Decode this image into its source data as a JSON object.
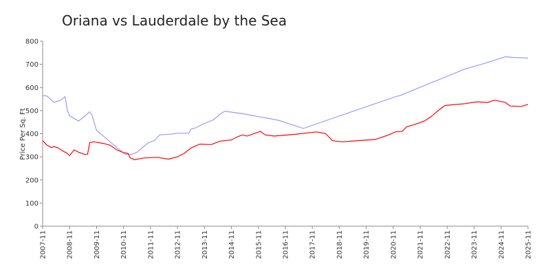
{
  "chart_data": {
    "type": "line",
    "title": "Oriana vs Lauderdale by the Sea",
    "y_label": "Price Per Sq. Ft",
    "xlim": [
      "2007-11",
      "2025-11"
    ],
    "xticks": [
      "2007-11",
      "2008-11",
      "2009-11",
      "2010-11",
      "2011-11",
      "2012-11",
      "2013-11",
      "2014-11",
      "2015-11",
      "2016-11",
      "2017-11",
      "2018-11",
      "2019-11",
      "2020-11",
      "2021-11",
      "2022-11",
      "2023-11",
      "2024-11",
      "2025-11"
    ],
    "ylim": [
      0,
      800
    ],
    "yticks": [
      0,
      100,
      200,
      300,
      400,
      500,
      600,
      700,
      800
    ],
    "series": [
      {
        "color": "#9999ff",
        "x": [
          "2007-11",
          "2008-01",
          "2008-04",
          "2008-07",
          "2008-09",
          "2008-10",
          "2008-11",
          "2009-03",
          "2009-05",
          "2009-08",
          "2009-09",
          "2009-11",
          "2010-02",
          "2010-05",
          "2010-08",
          "2010-12",
          "2011-03",
          "2011-05",
          "2011-08",
          "2011-10",
          "2012-01",
          "2012-03",
          "2012-08",
          "2012-11",
          "2013-04",
          "2013-05",
          "2013-07",
          "2013-10",
          "2014-03",
          "2014-06",
          "2014-08",
          "2014-10",
          "2015-05",
          "2016-08",
          "2017-07",
          "2020-12",
          "2021-02",
          "2021-07",
          "2023-07",
          "2024-04",
          "2025-01",
          "2025-04",
          "2025-11"
        ],
        "values": [
          565,
          563,
          535,
          545,
          560,
          500,
          478,
          455,
          470,
          495,
          480,
          415,
          390,
          365,
          340,
          310,
          312,
          320,
          345,
          360,
          372,
          395,
          398,
          402,
          402,
          420,
          425,
          440,
          460,
          485,
          497,
          495,
          485,
          458,
          423,
          560,
          565,
          585,
          680,
          705,
          733,
          730,
          727
        ]
      },
      {
        "color": "#ff0000",
        "x": [
          "2007-11",
          "2008-01",
          "2008-03",
          "2008-04",
          "2008-06",
          "2008-08",
          "2008-10",
          "2008-11",
          "2009-01",
          "2009-03",
          "2009-06",
          "2009-07",
          "2009-08",
          "2009-10",
          "2010-02",
          "2010-05",
          "2010-08",
          "2010-11",
          "2011-01",
          "2011-02",
          "2011-04",
          "2011-08",
          "2012-02",
          "2012-07",
          "2012-11",
          "2013-02",
          "2013-05",
          "2013-09",
          "2014-02",
          "2014-06",
          "2014-11",
          "2015-02",
          "2015-04",
          "2015-06",
          "2015-12",
          "2016-02",
          "2016-06",
          "2017-03",
          "2018-01",
          "2018-05",
          "2018-08",
          "2018-12",
          "2020-03",
          "2020-09",
          "2020-12",
          "2021-03",
          "2021-05",
          "2021-08",
          "2022-01",
          "2022-04",
          "2022-07",
          "2022-10",
          "2023-01",
          "2023-07",
          "2023-10",
          "2024-01",
          "2024-05",
          "2024-08",
          "2025-01",
          "2025-03",
          "2025-08",
          "2025-11"
        ],
        "values": [
          370,
          350,
          340,
          345,
          338,
          325,
          315,
          305,
          330,
          320,
          310,
          312,
          362,
          365,
          358,
          350,
          330,
          318,
          315,
          295,
          288,
          295,
          298,
          290,
          300,
          315,
          338,
          355,
          353,
          368,
          373,
          388,
          395,
          390,
          410,
          395,
          390,
          397,
          408,
          400,
          370,
          365,
          375,
          395,
          408,
          410,
          430,
          438,
          455,
          475,
          500,
          522,
          525,
          530,
          535,
          538,
          535,
          545,
          535,
          520,
          518,
          527
        ]
      }
    ]
  }
}
